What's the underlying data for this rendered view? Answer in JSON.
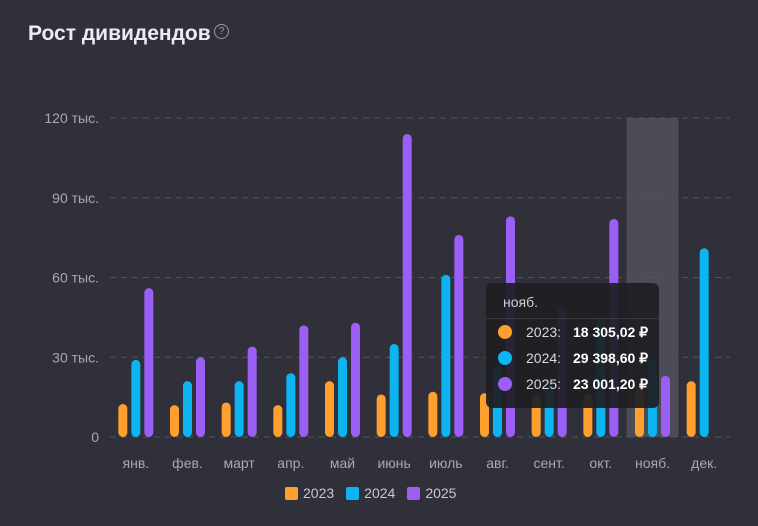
{
  "title": "Рост дивидендов",
  "help_icon": "question-circle-icon",
  "chart_data": {
    "type": "bar",
    "categories": [
      "янв.",
      "фев.",
      "март",
      "апр.",
      "май",
      "июнь",
      "июль",
      "авг.",
      "сент.",
      "окт.",
      "нояб.",
      "дек."
    ],
    "series": [
      {
        "name": "2023",
        "color": "#ff9f2e",
        "values": [
          12.4,
          12,
          13,
          12,
          21,
          16,
          17,
          16.5,
          16,
          16.5,
          18.305,
          21
        ]
      },
      {
        "name": "2024",
        "color": "#0db4f2",
        "values": [
          29,
          21,
          21,
          24,
          30,
          35,
          61,
          27,
          22,
          45,
          29.399,
          71
        ]
      },
      {
        "name": "2025",
        "color": "#9b5ff5",
        "values": [
          56,
          30,
          34,
          42,
          43,
          114,
          76,
          83,
          49,
          82,
          23.001,
          null
        ]
      }
    ],
    "y_unit": "тыс. ₽",
    "ylim": [
      0,
      120
    ],
    "yticks": [
      {
        "value": 0,
        "label": "0"
      },
      {
        "value": 30,
        "label": "30 тыс."
      },
      {
        "value": 60,
        "label": "60 тыс."
      },
      {
        "value": 90,
        "label": "90 тыс."
      },
      {
        "value": 120,
        "label": "120 тыс."
      }
    ],
    "grid": true,
    "legend": "bottom",
    "highlighted_category": "нояб."
  },
  "tooltip": {
    "header": "нояб.",
    "rows": [
      {
        "year": "2023:",
        "value": "18 305,02 ₽",
        "color": "#ff9f2e"
      },
      {
        "year": "2024:",
        "value": "29 398,60 ₽",
        "color": "#0db4f2"
      },
      {
        "year": "2025:",
        "value": "23 001,20 ₽",
        "color": "#9b5ff5"
      }
    ]
  }
}
